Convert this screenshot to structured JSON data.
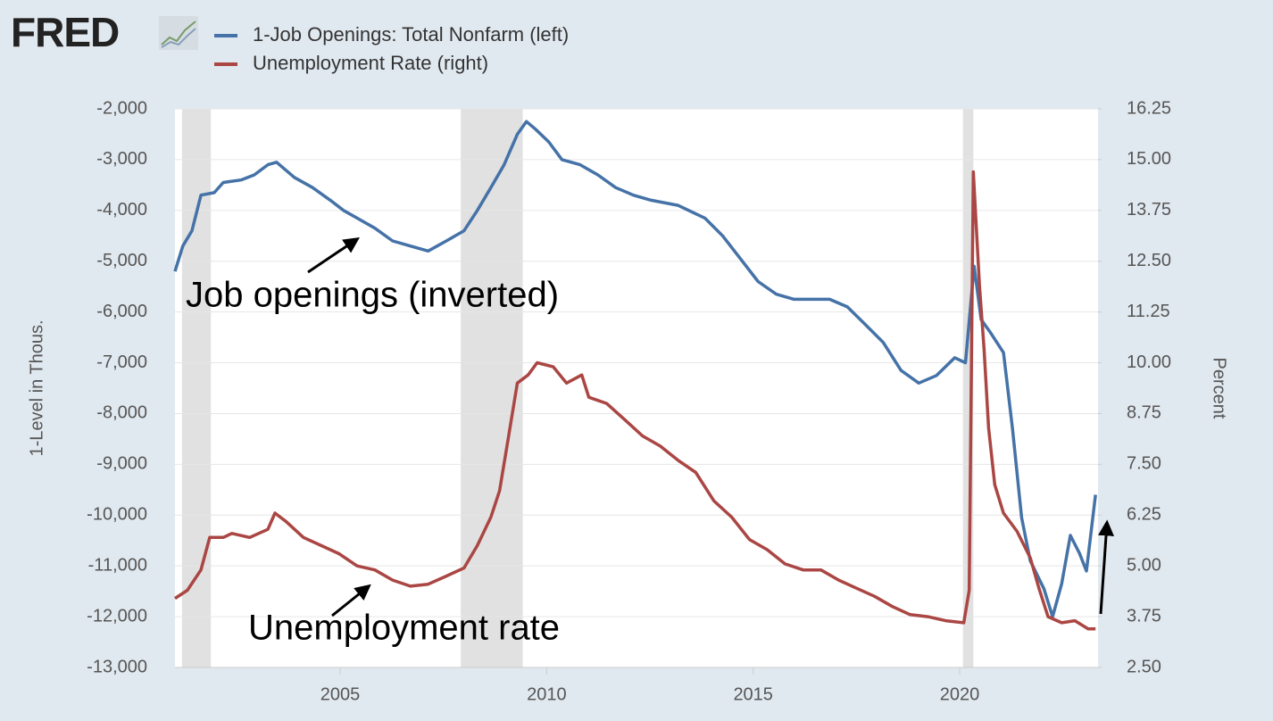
{
  "brand": "FRED",
  "chart_data": {
    "type": "line",
    "legend": "top-left",
    "ylabel": "1-Level in Thous.",
    "y2label": "Percent",
    "annotations": [
      "Job openings (inverted)",
      "Unemployment rate"
    ],
    "xlim": [
      2001,
      2023.35
    ],
    "xticks": [
      2005,
      2010,
      2015,
      2020
    ],
    "ylim": [
      -13000,
      -2000
    ],
    "yticks": [
      {
        "value": -2000,
        "label": "-2,000"
      },
      {
        "value": -3000,
        "label": "-3,000"
      },
      {
        "value": -4000,
        "label": "-4,000"
      },
      {
        "value": -5000,
        "label": "-5,000"
      },
      {
        "value": -6000,
        "label": "-6,000"
      },
      {
        "value": -7000,
        "label": "-7,000"
      },
      {
        "value": -8000,
        "label": "-8,000"
      },
      {
        "value": -9000,
        "label": "-9,000"
      },
      {
        "value": -10000,
        "label": "-10,000"
      },
      {
        "value": -11000,
        "label": "-11,000"
      },
      {
        "value": -12000,
        "label": "-12,000"
      },
      {
        "value": -13000,
        "label": "-13,000"
      }
    ],
    "y2lim": [
      2.5,
      16.25
    ],
    "y2ticks": [
      {
        "value": 2.5,
        "label": "2.50"
      },
      3.75,
      {
        "value": 5,
        "label": "5.00"
      },
      6.25,
      {
        "value": 7.5,
        "label": "7.50"
      },
      8.75,
      {
        "value": 10,
        "label": "10.00"
      },
      11.25,
      {
        "value": 12.5,
        "label": "12.50"
      },
      13.75,
      {
        "value": 15,
        "label": "15.00"
      },
      16.25
    ],
    "grid": true,
    "recessions": [
      [
        2001.17,
        2001.87
      ],
      [
        2007.92,
        2009.42
      ],
      [
        2020.08,
        2020.33
      ]
    ],
    "series": [
      {
        "name": "1-Job Openings: Total Nonfarm (left)",
        "color": "#4572a7",
        "axis": "y",
        "x": [
          2001.0,
          2001.19,
          2001.41,
          2001.63,
          2001.95,
          2002.17,
          2002.6,
          2002.92,
          2003.25,
          2003.46,
          2003.89,
          2004.33,
          2004.76,
          2005.08,
          2005.41,
          2005.84,
          2006.27,
          2006.7,
          2007.13,
          2007.57,
          2008.0,
          2008.32,
          2008.65,
          2008.97,
          2009.29,
          2009.51,
          2009.73,
          2010.05,
          2010.37,
          2010.81,
          2011.24,
          2011.67,
          2012.1,
          2012.53,
          2013.18,
          2013.83,
          2014.26,
          2014.69,
          2015.12,
          2015.56,
          2015.99,
          2016.42,
          2016.85,
          2017.28,
          2017.72,
          2018.15,
          2018.58,
          2019.01,
          2019.44,
          2019.88,
          2020.14,
          2020.35,
          2020.52,
          2020.74,
          2021.06,
          2021.28,
          2021.5,
          2021.71,
          2022.04,
          2022.25,
          2022.47,
          2022.68,
          2022.9,
          2023.07,
          2023.29
        ],
        "values": [
          -5200,
          -4700,
          -4400,
          -3700,
          -3650,
          -3450,
          -3400,
          -3300,
          -3100,
          -3050,
          -3350,
          -3550,
          -3800,
          -4000,
          -4150,
          -4350,
          -4600,
          -4700,
          -4800,
          -4600,
          -4400,
          -4000,
          -3550,
          -3100,
          -2500,
          -2250,
          -2400,
          -2650,
          -3000,
          -3100,
          -3300,
          -3550,
          -3700,
          -3800,
          -3900,
          -4150,
          -4500,
          -4950,
          -5400,
          -5650,
          -5750,
          -5750,
          -5750,
          -5900,
          -6250,
          -6600,
          -7150,
          -7400,
          -7250,
          -6900,
          -7000,
          -5100,
          -6150,
          -6400,
          -6800,
          -8300,
          -10050,
          -10900,
          -11450,
          -12000,
          -11350,
          -10400,
          -10750,
          -11100,
          -9600
        ]
      },
      {
        "name": "Unemployment Rate (right)",
        "color": "#aa4643",
        "axis": "y2",
        "x": [
          2001.0,
          2001.3,
          2001.63,
          2001.84,
          2002.17,
          2002.38,
          2002.81,
          2003.25,
          2003.42,
          2003.68,
          2004.11,
          2004.54,
          2004.97,
          2005.41,
          2005.84,
          2006.27,
          2006.7,
          2007.13,
          2007.57,
          2008.0,
          2008.32,
          2008.65,
          2008.86,
          2009.08,
          2009.29,
          2009.55,
          2009.77,
          2010.16,
          2010.48,
          2010.85,
          2011.02,
          2011.45,
          2011.89,
          2012.32,
          2012.75,
          2013.18,
          2013.61,
          2014.05,
          2014.48,
          2014.91,
          2015.34,
          2015.77,
          2016.21,
          2016.64,
          2017.07,
          2017.5,
          2017.94,
          2018.37,
          2018.8,
          2019.23,
          2019.66,
          2020.1,
          2020.23,
          2020.33,
          2020.48,
          2020.59,
          2020.7,
          2020.85,
          2021.06,
          2021.39,
          2021.71,
          2021.92,
          2022.14,
          2022.47,
          2022.79,
          2023.11,
          2023.29
        ],
        "values": [
          4.2,
          4.4,
          4.9,
          5.7,
          5.7,
          5.8,
          5.7,
          5.9,
          6.3,
          6.1,
          5.7,
          5.5,
          5.3,
          5.0,
          4.9,
          4.65,
          4.5,
          4.55,
          4.75,
          4.95,
          5.5,
          6.2,
          6.85,
          8.2,
          9.5,
          9.7,
          10.0,
          9.9,
          9.5,
          9.7,
          9.15,
          9.0,
          8.6,
          8.2,
          7.95,
          7.6,
          7.3,
          6.6,
          6.2,
          5.65,
          5.4,
          5.05,
          4.9,
          4.9,
          4.65,
          4.45,
          4.25,
          4.0,
          3.8,
          3.75,
          3.65,
          3.6,
          4.4,
          14.7,
          11.9,
          10.35,
          8.4,
          7.0,
          6.3,
          5.85,
          5.2,
          4.45,
          3.75,
          3.6,
          3.65,
          3.45,
          3.45
        ]
      }
    ]
  }
}
